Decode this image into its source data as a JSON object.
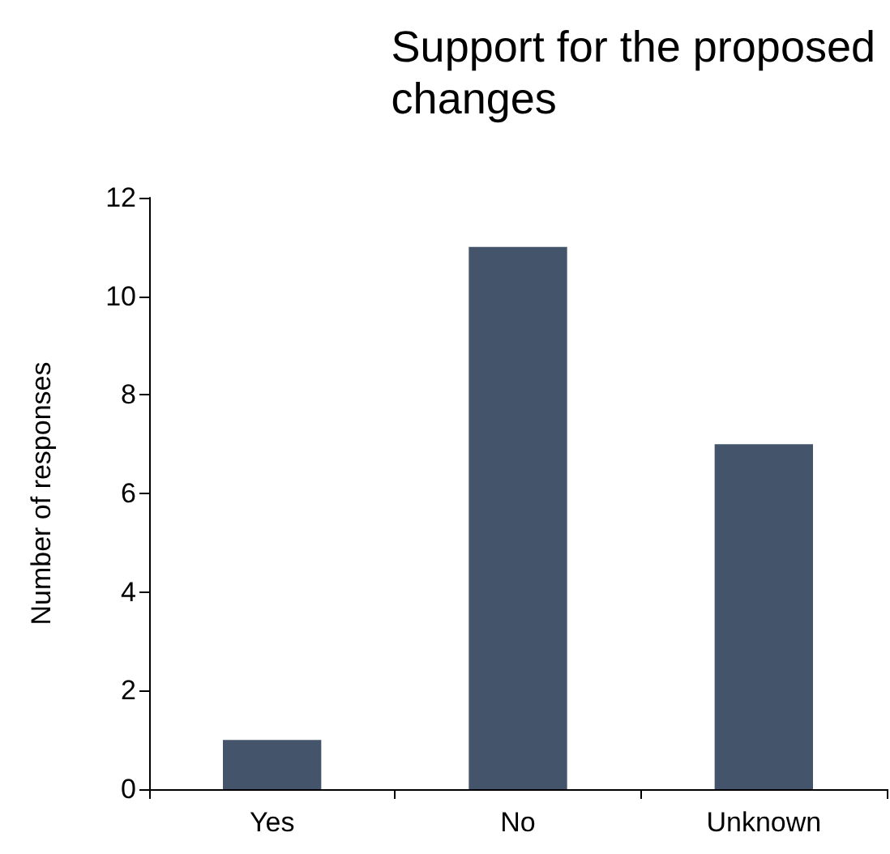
{
  "chart_data": {
    "type": "bar",
    "title": "Support for the proposed\nchanges",
    "ylabel": "Number of responses",
    "categories": [
      "Yes",
      "No",
      "Unknown"
    ],
    "values": [
      1,
      11,
      7
    ],
    "color": "#44546a",
    "ylim": [
      0,
      12
    ],
    "yticks": [
      0,
      2,
      4,
      6,
      8,
      10,
      12
    ],
    "grid": false
  }
}
